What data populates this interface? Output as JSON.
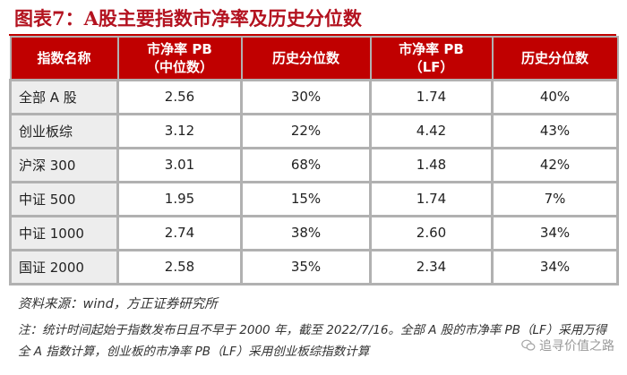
{
  "title": "图表7：A股主要指数市净率及历史分位数",
  "table": {
    "headers": [
      "指数名称",
      "市净率 PB\n（中位数）",
      "历史分位数",
      "市净率 PB\n（LF）",
      "历史分位数"
    ],
    "rows": [
      [
        "全部 A 股",
        "2.56",
        "30%",
        "1.74",
        "40%"
      ],
      [
        "创业板综",
        "3.12",
        "22%",
        "4.42",
        "43%"
      ],
      [
        "沪深 300",
        "3.01",
        "68%",
        "1.48",
        "42%"
      ],
      [
        "中证 500",
        "1.95",
        "15%",
        "1.74",
        "7%"
      ],
      [
        "中证 1000",
        "2.74",
        "38%",
        "2.60",
        "34%"
      ],
      [
        "国证 2000",
        "2.58",
        "35%",
        "2.34",
        "34%"
      ]
    ]
  },
  "source": "资料来源：wind，方正证券研究所",
  "note": "注：统计时间起始于指数发布日且不早于 2000 年，截至 2022/7/16。全部 A 股的市净率 PB（LF）采用万得全 A 指数计算，创业板的市净率 PB（LF）采用创业板综指数计算",
  "watermark": "追寻价值之路",
  "colors": {
    "header_bg": "#c00000",
    "title": "#b3121f",
    "border": "#b1b1b1"
  }
}
